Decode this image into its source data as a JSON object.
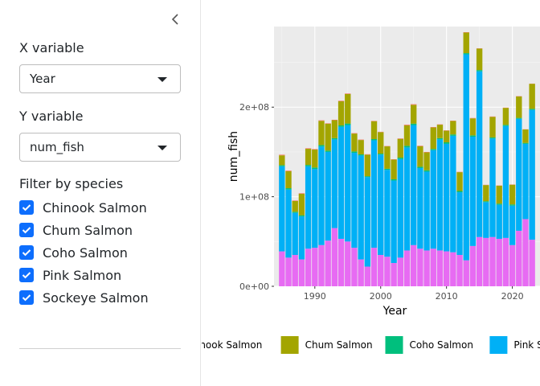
{
  "sidebar": {
    "x_label": "X variable",
    "x_value": "Year",
    "y_label": "Y variable",
    "y_value": "num_fish",
    "filter_label": "Filter by species",
    "species": [
      {
        "label": "Chinook Salmon",
        "checked": true
      },
      {
        "label": "Chum Salmon",
        "checked": true
      },
      {
        "label": "Coho Salmon",
        "checked": true
      },
      {
        "label": "Pink Salmon",
        "checked": true
      },
      {
        "label": "Sockeye Salmon",
        "checked": true
      }
    ],
    "checkbox_color": "#0d6efd"
  },
  "chart_data": {
    "type": "bar",
    "stacked": true,
    "xlabel": "Year",
    "ylabel": "num_fish",
    "xticks": [
      1990,
      2000,
      2010,
      2020
    ],
    "yticks": [
      0,
      100000000,
      200000000
    ],
    "ytick_labels": [
      "0e+00",
      "1e+08",
      "2e+08"
    ],
    "ylim": [
      0,
      290000000
    ],
    "xlim": [
      1983.8,
      2024.2
    ],
    "panel_background": "#ebebeb",
    "grid": true,
    "legend_position": "bottom",
    "series": [
      {
        "name": "Chinook Salmon",
        "color": "#f8766d"
      },
      {
        "name": "Chum Salmon",
        "color": "#a3a500"
      },
      {
        "name": "Coho Salmon",
        "color": "#00bf7d"
      },
      {
        "name": "Pink Salmon",
        "color": "#00b0f6"
      },
      {
        "name": "Sockeye Salmon",
        "color": "#e76bf3"
      }
    ],
    "years": [
      1985,
      1986,
      1987,
      1988,
      1989,
      1990,
      1991,
      1992,
      1993,
      1994,
      1995,
      1996,
      1997,
      1998,
      1999,
      2000,
      2001,
      2002,
      2003,
      2004,
      2005,
      2006,
      2007,
      2008,
      2009,
      2010,
      2011,
      2012,
      2013,
      2014,
      2015,
      2016,
      2017,
      2018,
      2019,
      2020,
      2021,
      2022,
      2023
    ],
    "chinook": [
      700000,
      700000,
      600000,
      600000,
      600000,
      600000,
      600000,
      500000,
      500000,
      600000,
      600000,
      500000,
      500000,
      500000,
      400000,
      400000,
      400000,
      400000,
      500000,
      700000,
      700000,
      600000,
      500000,
      500000,
      400000,
      400000,
      400000,
      400000,
      400000,
      400000,
      300000,
      300000,
      400000,
      300000,
      300000,
      300000,
      300000,
      200000,
      200000
    ],
    "sockeye": [
      39000000,
      32000000,
      35000000,
      30000000,
      42000000,
      43000000,
      46000000,
      51000000,
      65000000,
      53000000,
      50000000,
      43000000,
      30000000,
      22000000,
      43000000,
      35000000,
      33000000,
      26000000,
      32000000,
      40000000,
      46000000,
      42000000,
      40000000,
      42000000,
      40000000,
      39000000,
      38000000,
      35000000,
      29000000,
      45000000,
      55000000,
      54000000,
      55000000,
      53000000,
      54000000,
      46000000,
      62000000,
      75000000,
      52000000
    ],
    "pink": [
      95000000,
      76000000,
      47000000,
      48000000,
      92000000,
      88000000,
      110000000,
      99000000,
      99000000,
      125000000,
      130000000,
      106000000,
      116000000,
      100000000,
      120000000,
      112000000,
      97000000,
      92000000,
      110000000,
      115000000,
      134000000,
      90000000,
      88000000,
      110000000,
      124000000,
      120000000,
      130000000,
      70000000,
      230000000,
      122000000,
      185000000,
      40000000,
      110000000,
      38000000,
      125000000,
      44000000,
      125000000,
      84000000,
      145000000
    ],
    "coho": [
      1200000,
      1500000,
      1200000,
      1300000,
      1500000,
      1600000,
      1700000,
      1500000,
      1400000,
      1600000,
      1700000,
      1500000,
      1300000,
      900000,
      1300000,
      1100000,
      1200000,
      1400000,
      1600000,
      1800000,
      1600000,
      1400000,
      1500000,
      1300000,
      1400000,
      1700000,
      1500000,
      1400000,
      1300000,
      1500000,
      1400000,
      1000000,
      1200000,
      1300000,
      1200000,
      1400000,
      1000000,
      1100000,
      1100000
    ],
    "chum": [
      11000000,
      19000000,
      12000000,
      24000000,
      18000000,
      20000000,
      27000000,
      30000000,
      20000000,
      27000000,
      33000000,
      20000000,
      16000000,
      24000000,
      20000000,
      24000000,
      25000000,
      22000000,
      21000000,
      23000000,
      21000000,
      23000000,
      20000000,
      24000000,
      15000000,
      13000000,
      15000000,
      21000000,
      23000000,
      19000000,
      24000000,
      18000000,
      23000000,
      20000000,
      19000000,
      22000000,
      24000000,
      15000000,
      28000000
    ]
  }
}
